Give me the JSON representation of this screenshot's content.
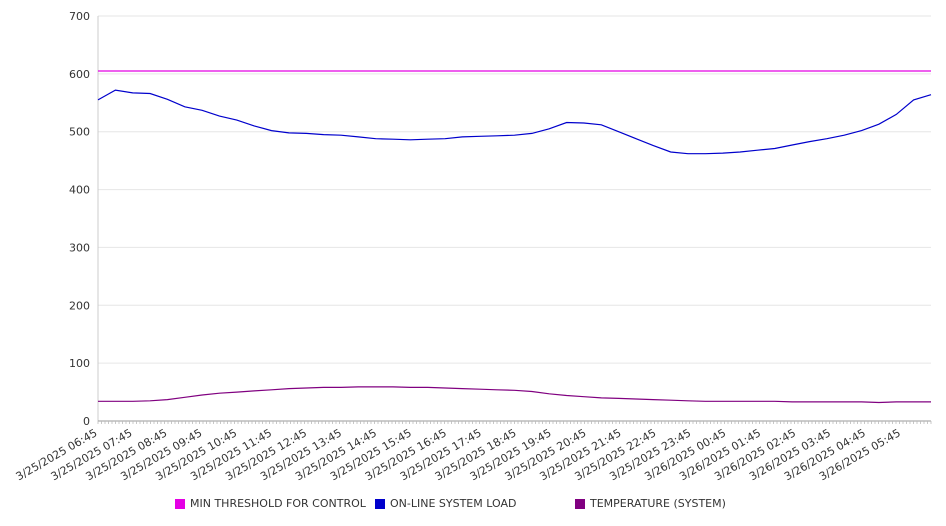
{
  "chart_data": {
    "type": "line",
    "title": "",
    "xlabel": "",
    "ylabel": "",
    "ylim": [
      0,
      700
    ],
    "yticks": [
      0,
      100,
      200,
      300,
      400,
      500,
      600,
      700
    ],
    "grid": "horizontal",
    "legend_position": "bottom",
    "x_tick_labels": [
      "3/25/2025 06:45",
      "3/25/2025 07:45",
      "3/25/2025 08:45",
      "3/25/2025 09:45",
      "3/25/2025 10:45",
      "3/25/2025 11:45",
      "3/25/2025 12:45",
      "3/25/2025 13:45",
      "3/25/2025 14:45",
      "3/25/2025 15:45",
      "3/25/2025 16:45",
      "3/25/2025 17:45",
      "3/25/2025 18:45",
      "3/25/2025 19:45",
      "3/25/2025 20:45",
      "3/25/2025 21:45",
      "3/25/2025 22:45",
      "3/25/2025 23:45",
      "3/26/2025 00:45",
      "3/26/2025 01:45",
      "3/26/2025 02:45",
      "3/26/2025 03:45",
      "3/26/2025 04:45",
      "3/26/2025 05:45"
    ],
    "x": [
      "3/25/2025 06:45",
      "3/25/2025 07:15",
      "3/25/2025 07:45",
      "3/25/2025 08:15",
      "3/25/2025 08:45",
      "3/25/2025 09:15",
      "3/25/2025 09:45",
      "3/25/2025 10:15",
      "3/25/2025 10:45",
      "3/25/2025 11:15",
      "3/25/2025 11:45",
      "3/25/2025 12:15",
      "3/25/2025 12:45",
      "3/25/2025 13:15",
      "3/25/2025 13:45",
      "3/25/2025 14:15",
      "3/25/2025 14:45",
      "3/25/2025 15:15",
      "3/25/2025 15:45",
      "3/25/2025 16:15",
      "3/25/2025 16:45",
      "3/25/2025 17:15",
      "3/25/2025 17:45",
      "3/25/2025 18:15",
      "3/25/2025 18:45",
      "3/25/2025 19:15",
      "3/25/2025 19:45",
      "3/25/2025 20:15",
      "3/25/2025 20:45",
      "3/25/2025 21:15",
      "3/25/2025 21:45",
      "3/25/2025 22:15",
      "3/25/2025 22:45",
      "3/25/2025 23:15",
      "3/25/2025 23:45",
      "3/26/2025 00:15",
      "3/26/2025 00:45",
      "3/26/2025 01:15",
      "3/26/2025 01:45",
      "3/26/2025 02:15",
      "3/26/2025 02:45",
      "3/26/2025 03:15",
      "3/26/2025 03:45",
      "3/26/2025 04:15",
      "3/26/2025 04:45",
      "3/26/2025 05:15",
      "3/26/2025 05:45",
      "3/26/2025 06:15",
      "3/26/2025 06:30"
    ],
    "series": [
      {
        "name": "MIN THRESHOLD FOR CONTROL",
        "color": "#e400e4",
        "values": [
          605,
          605,
          605,
          605,
          605,
          605,
          605,
          605,
          605,
          605,
          605,
          605,
          605,
          605,
          605,
          605,
          605,
          605,
          605,
          605,
          605,
          605,
          605,
          605,
          605,
          605,
          605,
          605,
          605,
          605,
          605,
          605,
          605,
          605,
          605,
          605,
          605,
          605,
          605,
          605,
          605,
          605,
          605,
          605,
          605,
          605,
          605,
          605,
          605
        ]
      },
      {
        "name": "ON-LINE SYSTEM LOAD",
        "color": "#0000cc",
        "values": [
          555,
          572,
          567,
          566,
          556,
          543,
          537,
          527,
          520,
          510,
          502,
          498,
          497,
          495,
          494,
          491,
          488,
          487,
          486,
          487,
          488,
          491,
          492,
          493,
          494,
          497,
          505,
          516,
          515,
          512,
          500,
          488,
          476,
          465,
          462,
          462,
          463,
          465,
          468,
          471,
          477,
          483,
          488,
          494,
          502,
          513,
          530,
          555,
          564
        ]
      },
      {
        "name": "TEMPERATURE (SYSTEM)",
        "color": "#800080",
        "values": [
          34,
          34,
          34,
          35,
          37,
          41,
          45,
          48,
          50,
          52,
          54,
          56,
          57,
          58,
          58,
          59,
          59,
          59,
          58,
          58,
          57,
          56,
          55,
          54,
          53,
          51,
          47,
          44,
          42,
          40,
          39,
          38,
          37,
          36,
          35,
          34,
          34,
          34,
          34,
          34,
          33,
          33,
          33,
          33,
          33,
          32,
          33,
          33,
          33
        ]
      }
    ]
  }
}
